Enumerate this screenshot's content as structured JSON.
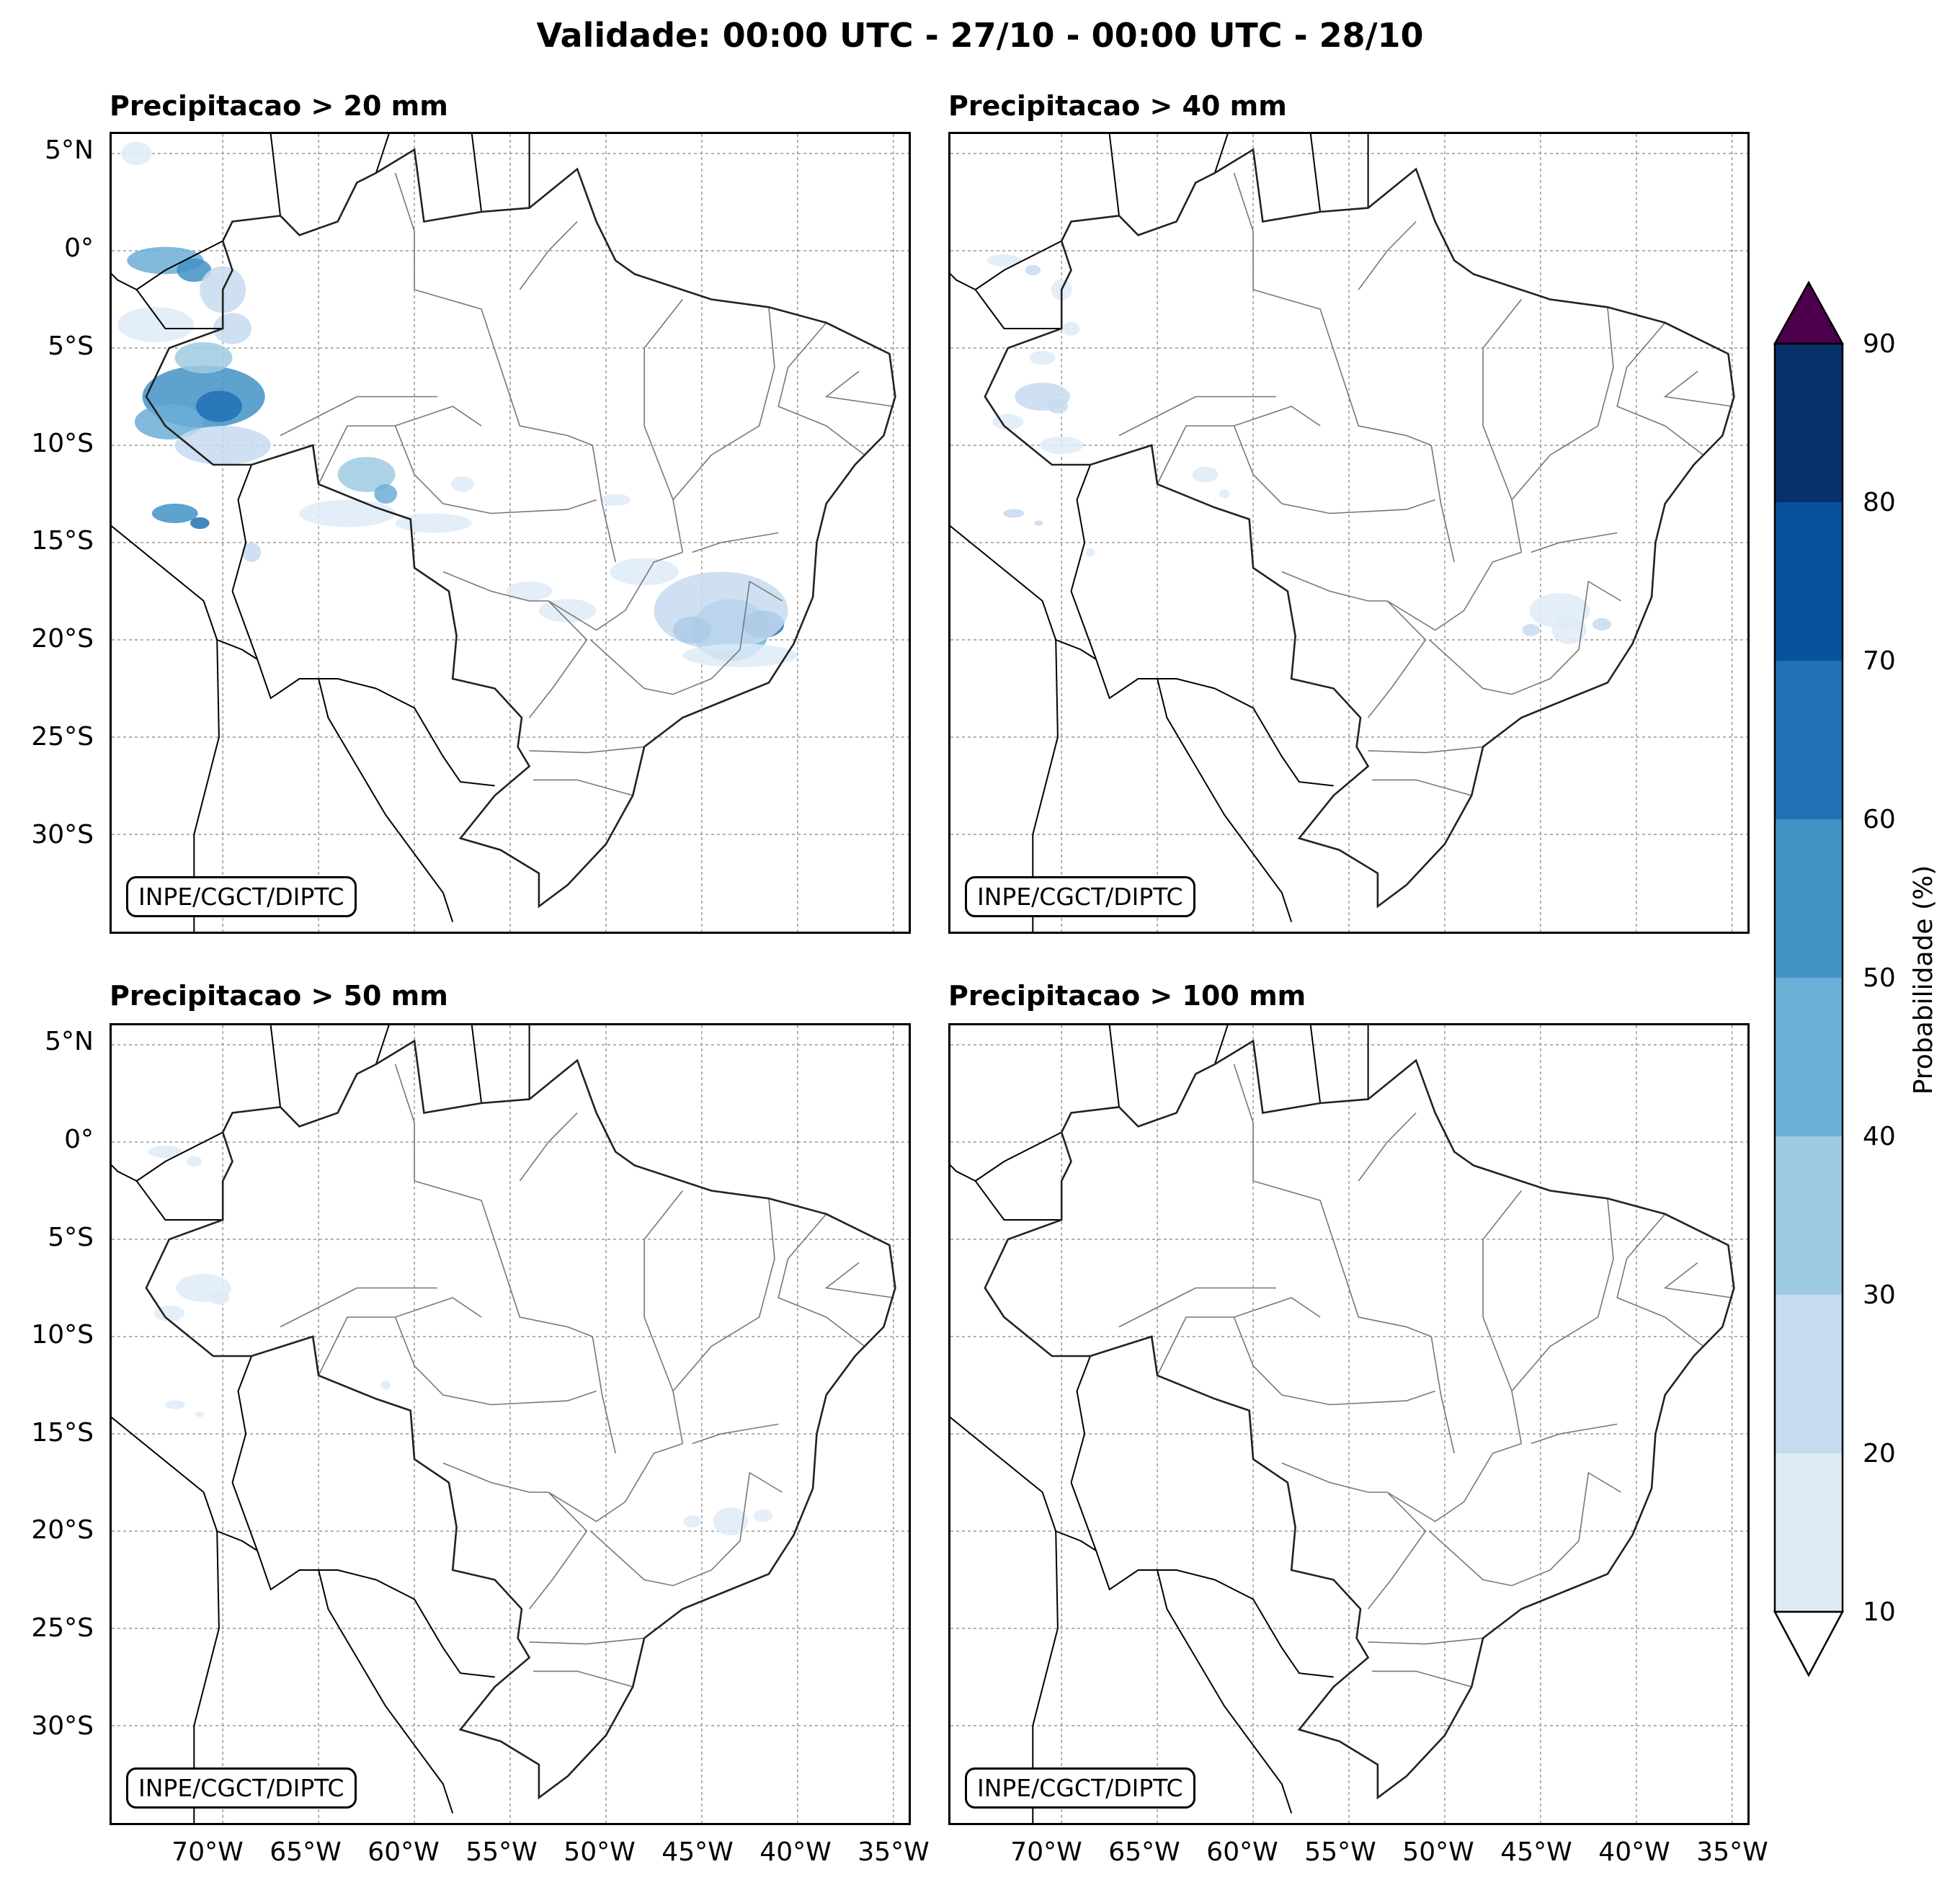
{
  "title": "Validade: 00:00 UTC - 27/10 - 00:00 UTC - 28/10",
  "panels": [
    {
      "title": "Precipitacao > 20 mm",
      "credit": "INPE/CGCT/DIPTC",
      "intensity": 1.0
    },
    {
      "title": "Precipitacao > 40 mm",
      "credit": "INPE/CGCT/DIPTC",
      "intensity": 0.35
    },
    {
      "title": "Precipitacao > 50 mm",
      "credit": "INPE/CGCT/DIPTC",
      "intensity": 0.15
    },
    {
      "title": "Precipitacao > 100 mm",
      "credit": "INPE/CGCT/DIPTC",
      "intensity": 0.0
    }
  ],
  "lat_ticks": [
    "5°N",
    "0°",
    "5°S",
    "10°S",
    "15°S",
    "20°S",
    "25°S",
    "30°S"
  ],
  "lon_ticks": [
    "70°W",
    "65°W",
    "60°W",
    "55°W",
    "50°W",
    "45°W",
    "40°W",
    "35°W"
  ],
  "colorbar": {
    "label": "Probabilidade (%)",
    "ticks": [
      "10",
      "20",
      "30",
      "40",
      "50",
      "60",
      "70",
      "80",
      "90"
    ],
    "colors": [
      "#deebf7",
      "#c6dbef",
      "#9ecae1",
      "#6baed6",
      "#4292c6",
      "#2171b5",
      "#08519c",
      "#08306b"
    ],
    "over_color": "#4d004b",
    "under_color": "#ffffff"
  }
}
